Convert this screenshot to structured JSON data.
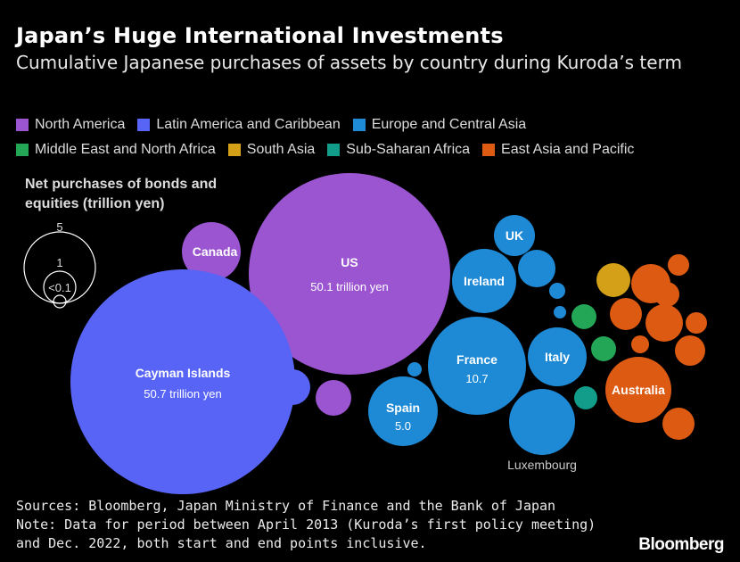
{
  "title": "Japan’s Huge International Investments",
  "subtitle": "Cumulative Japanese purchases of assets by country during Kuroda’s term",
  "legend": [
    {
      "label": "North America",
      "color": "#9b55d0"
    },
    {
      "label": "Latin America and Caribbean",
      "color": "#5864f5"
    },
    {
      "label": "Europe and Central Asia",
      "color": "#1e8ad6"
    },
    {
      "label": "Middle East and North Africa",
      "color": "#23a655"
    },
    {
      "label": "South Asia",
      "color": "#d4a017"
    },
    {
      "label": "Sub-Saharan Africa",
      "color": "#129c8a"
    },
    {
      "label": "East Asia and Pacific",
      "color": "#dd5a12"
    }
  ],
  "size_key": {
    "title": "Net purchases of bonds and equities (trillion yen)",
    "labels": [
      "5",
      "1",
      "<0.1"
    ]
  },
  "chart_data": {
    "type": "bubble",
    "value_unit": "trillion yen",
    "bubbles": [
      {
        "label": "US",
        "region": "North America",
        "value": 50.1,
        "value_text": "50.1 trillion yen"
      },
      {
        "label": "Canada",
        "region": "North America"
      },
      {
        "label": "Cayman Islands",
        "region": "Latin America and Caribbean",
        "value": 50.7,
        "value_text": "50.7 trillion yen"
      },
      {
        "label": "",
        "region": "Latin America and Caribbean"
      },
      {
        "label": "",
        "region": "Latin America and Caribbean"
      },
      {
        "label": "",
        "region": "North America"
      },
      {
        "label": "France",
        "region": "Europe and Central Asia",
        "value": 10.7,
        "value_text": "10.7"
      },
      {
        "label": "Spain",
        "region": "Europe and Central Asia",
        "value": 5.0,
        "value_text": "5.0"
      },
      {
        "label": "Ireland",
        "region": "Europe and Central Asia"
      },
      {
        "label": "UK",
        "region": "Europe and Central Asia"
      },
      {
        "label": "Italy",
        "region": "Europe and Central Asia"
      },
      {
        "label": "Luxembourg",
        "region": "Europe and Central Asia"
      },
      {
        "label": "",
        "region": "Europe and Central Asia"
      },
      {
        "label": "",
        "region": "Europe and Central Asia"
      },
      {
        "label": "",
        "region": "Europe and Central Asia"
      },
      {
        "label": "",
        "region": "Europe and Central Asia"
      },
      {
        "label": "",
        "region": "Middle East and North Africa"
      },
      {
        "label": "",
        "region": "Middle East and North Africa"
      },
      {
        "label": "",
        "region": "South Asia"
      },
      {
        "label": "",
        "region": "Sub-Saharan Africa"
      },
      {
        "label": "Australia",
        "region": "East Asia and Pacific"
      },
      {
        "label": "",
        "region": "East Asia and Pacific"
      },
      {
        "label": "",
        "region": "East Asia and Pacific"
      },
      {
        "label": "",
        "region": "East Asia and Pacific"
      },
      {
        "label": "",
        "region": "East Asia and Pacific"
      },
      {
        "label": "",
        "region": "East Asia and Pacific"
      },
      {
        "label": "",
        "region": "East Asia and Pacific"
      },
      {
        "label": "",
        "region": "East Asia and Pacific"
      },
      {
        "label": "",
        "region": "East Asia and Pacific"
      },
      {
        "label": "",
        "region": "East Asia and Pacific"
      }
    ]
  },
  "footer": {
    "sources": "Sources: Bloomberg, Japan Ministry of Finance and the Bank of Japan",
    "note_line1": "Note: Data for period between April 2013 (Kuroda’s first policy meeting)",
    "note_line2": "and Dec. 2022, both start and end points inclusive."
  },
  "brand": "Bloomberg"
}
